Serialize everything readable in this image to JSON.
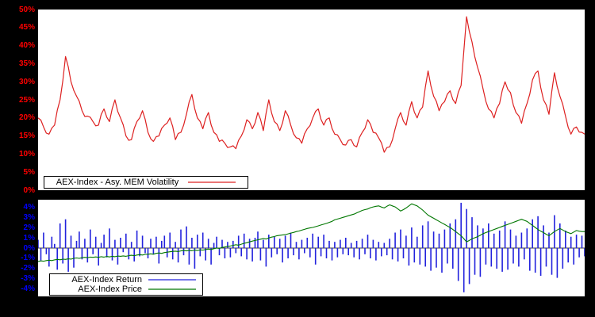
{
  "colors": {
    "background": "#000000",
    "plot_background": "#ffffff",
    "volatility_line": "#dd2020",
    "volatility_axis_text": "#ff0000",
    "return_bars": "#2222dd",
    "return_axis_text": "#0000ff",
    "price_line": "#007700",
    "legend_text": "#000000",
    "zero_axis": "#000000"
  },
  "chart_data": [
    {
      "type": "line",
      "title": "",
      "xlabel": "",
      "ylabel": "",
      "ylim": [
        0,
        50
      ],
      "yticks": [
        "50%",
        "45%",
        "40%",
        "35%",
        "30%",
        "25%",
        "20%",
        "15%",
        "10%",
        "5%",
        "0%"
      ],
      "grid": false,
      "legend_position": "bottom-left-inside",
      "series": [
        {
          "name": "AEX-Index - Asy. MEM Volatility",
          "color": "#dd2020",
          "unit": "%",
          "values": [
            20.0,
            19.4,
            17.5,
            15.8,
            15.5,
            17.2,
            18.0,
            22.1,
            25.0,
            30.3,
            37.0,
            34.1,
            30.0,
            27.6,
            26.0,
            24.6,
            22.0,
            20.4,
            20.5,
            20.2,
            19.0,
            17.8,
            18.0,
            21.0,
            22.5,
            20.2,
            19.0,
            22.6,
            25.0,
            21.8,
            20.0,
            18.1,
            15.0,
            13.8,
            14.0,
            17.1,
            19.0,
            20.0,
            22.0,
            19.6,
            16.0,
            14.2,
            13.5,
            14.8,
            15.0,
            17.1,
            18.0,
            18.6,
            20.0,
            17.6,
            14.0,
            15.7,
            16.0,
            18.0,
            21.0,
            24.4,
            26.5,
            22.6,
            20.0,
            19.0,
            17.0,
            19.8,
            21.5,
            18.1,
            16.0,
            15.3,
            13.5,
            13.9,
            13.0,
            11.8,
            12.0,
            12.3,
            11.5,
            13.8,
            15.0,
            16.7,
            19.5,
            18.8,
            17.0,
            18.6,
            21.5,
            19.6,
            16.5,
            21.3,
            25.0,
            21.4,
            19.0,
            18.3,
            16.5,
            18.6,
            22.0,
            20.6,
            18.0,
            15.6,
            14.5,
            14.3,
            13.0,
            15.6,
            17.0,
            17.9,
            20.0,
            21.8,
            22.5,
            19.6,
            18.0,
            19.6,
            20.0,
            17.1,
            15.5,
            15.3,
            14.0,
            12.6,
            12.5,
            13.8,
            14.0,
            12.4,
            12.0,
            14.6,
            16.0,
            17.1,
            19.5,
            18.3,
            16.0,
            15.8,
            14.5,
            13.1,
            10.5,
            11.8,
            12.0,
            13.9,
            17.0,
            19.8,
            21.5,
            19.1,
            18.0,
            21.8,
            24.5,
            21.6,
            20.0,
            22.1,
            23.0,
            28.6,
            33.0,
            28.9,
            26.0,
            24.6,
            22.0,
            23.8,
            24.5,
            26.6,
            27.5,
            25.1,
            24.0,
            27.1,
            29.0,
            38.6,
            48.0,
            43.9,
            41.0,
            36.9,
            34.0,
            31.6,
            28.0,
            24.6,
            22.5,
            21.8,
            20.0,
            22.6,
            24.0,
            27.6,
            30.0,
            27.9,
            27.0,
            23.6,
            21.5,
            20.6,
            18.5,
            21.8,
            24.0,
            26.6,
            30.5,
            32.3,
            33.0,
            28.4,
            25.0,
            23.6,
            21.0,
            27.3,
            32.5,
            28.6,
            26.0,
            23.8,
            20.5,
            17.4,
            15.5,
            17.1,
            17.5,
            16.1,
            16.0,
            15.5
          ]
        }
      ]
    },
    {
      "type": "mixed",
      "title": "",
      "xlabel": "",
      "ylabel": "",
      "ylim": [
        -4.7,
        4.7
      ],
      "yticks": [
        "4%",
        "3%",
        "2%",
        "1%",
        "0%",
        "-1%",
        "-2%",
        "-3%",
        "-4%"
      ],
      "grid": false,
      "legend_position": "bottom-left-inside",
      "series": [
        {
          "name": "AEX-Index Return",
          "type": "bar",
          "color": "#2222dd",
          "unit": "%",
          "values": [
            0.8,
            -1.2,
            1.5,
            -0.6,
            -1.8,
            1.1,
            0.4,
            -2.1,
            2.4,
            -1.5,
            2.8,
            -2.3,
            1.2,
            -1.9,
            0.7,
            1.6,
            -1.1,
            0.9,
            -1.4,
            1.8,
            -0.6,
            1.1,
            -1.7,
            0.5,
            1.3,
            -0.9,
            1.9,
            -1.2,
            0.8,
            -1.6,
            1.0,
            -0.4,
            1.4,
            -1.1,
            0.6,
            -1.3,
            1.7,
            -0.8,
            1.2,
            -0.5,
            -1.0,
            0.9,
            -0.6,
            1.1,
            -1.5,
            0.7,
            1.2,
            -0.9,
            1.5,
            -1.1,
            0.6,
            -1.4,
            1.8,
            -0.7,
            2.1,
            -1.6,
            1.0,
            -2.0,
            1.3,
            -0.8,
            1.5,
            -1.2,
            0.9,
            -1.6,
            0.5,
            1.1,
            -0.7,
            0.8,
            -1.0,
            0.6,
            -0.9,
            0.7,
            -0.5,
            1.2,
            -0.8,
            1.4,
            -1.1,
            0.9,
            -1.3,
            1.0,
            1.6,
            -1.2,
            0.8,
            -1.8,
            1.3,
            -0.9,
            1.1,
            -0.6,
            0.9,
            -1.4,
            1.2,
            -1.0,
            1.5,
            -0.7,
            0.6,
            -1.1,
            0.8,
            -0.5,
            1.0,
            -0.9,
            1.4,
            -1.6,
            1.1,
            -0.8,
            1.3,
            -1.0,
            0.7,
            -1.2,
            0.6,
            -0.9,
            0.8,
            -0.6,
            1.0,
            -0.7,
            0.5,
            -0.9,
            0.7,
            -1.1,
            0.9,
            -0.6,
            1.3,
            -1.0,
            0.8,
            -1.2,
            0.6,
            -0.8,
            0.5,
            -0.7,
            0.9,
            -1.1,
            1.5,
            -1.3,
            1.8,
            -1.0,
            1.2,
            -1.7,
            2.0,
            -1.4,
            1.1,
            -1.6,
            2.2,
            -1.8,
            2.6,
            -2.2,
            1.6,
            -1.9,
            1.4,
            -2.4,
            1.8,
            -1.5,
            2.4,
            -2.0,
            2.8,
            -3.2,
            4.4,
            -4.3,
            3.8,
            -3.5,
            3.0,
            -2.6,
            2.2,
            -2.8,
            1.9,
            -1.6,
            2.4,
            -1.8,
            1.4,
            -2.0,
            1.7,
            -2.3,
            2.6,
            -2.1,
            1.8,
            -1.5,
            1.2,
            -1.8,
            1.5,
            -1.1,
            1.9,
            -2.2,
            2.8,
            -2.4,
            3.1,
            -2.7,
            2.2,
            -1.8,
            1.5,
            -2.6,
            3.2,
            -2.9,
            2.4,
            -2.0,
            1.7,
            -1.4,
            1.1,
            -1.6,
            1.3,
            -0.9,
            1.2,
            -0.8
          ]
        },
        {
          "name": "AEX-Index Price",
          "type": "line",
          "color": "#007700",
          "unit": "%",
          "values": [
            -1.3,
            -1.25,
            -1.28,
            -1.22,
            -1.18,
            -1.22,
            -1.15,
            -1.1,
            -1.14,
            -1.08,
            -1.1,
            -1.05,
            -1.08,
            -1.0,
            -0.96,
            -1.0,
            -0.94,
            -0.9,
            -0.94,
            -0.88,
            -0.9,
            -0.86,
            -0.9,
            -0.84,
            -0.88,
            -0.82,
            -0.86,
            -0.8,
            -0.84,
            -0.78,
            -0.8,
            -0.76,
            -0.8,
            -0.74,
            -0.7,
            -0.74,
            -0.68,
            -0.64,
            -0.68,
            -0.62,
            -0.6,
            -0.56,
            -0.6,
            -0.52,
            -0.48,
            -0.52,
            -0.44,
            -0.4,
            -0.36,
            -0.32,
            -0.3,
            -0.34,
            -0.28,
            -0.24,
            -0.28,
            -0.22,
            -0.26,
            -0.2,
            -0.24,
            -0.18,
            -0.2,
            -0.14,
            -0.1,
            -0.14,
            -0.06,
            0.0,
            -0.04,
            0.06,
            0.1,
            0.16,
            0.2,
            0.26,
            0.32,
            0.28,
            0.38,
            0.46,
            0.52,
            0.6,
            0.68,
            0.74,
            0.8,
            0.86,
            0.92,
            0.88,
            0.98,
            1.06,
            1.12,
            1.2,
            1.24,
            1.28,
            1.3,
            1.38,
            1.46,
            1.52,
            1.6,
            1.66,
            1.74,
            1.82,
            1.9,
            1.96,
            2.0,
            2.08,
            2.16,
            2.24,
            2.32,
            2.4,
            2.5,
            2.6,
            2.74,
            2.82,
            2.9,
            2.98,
            3.06,
            3.14,
            3.22,
            3.3,
            3.42,
            3.54,
            3.66,
            3.74,
            3.8,
            3.92,
            4.0,
            4.06,
            4.1,
            3.98,
            3.9,
            4.06,
            4.2,
            4.1,
            4.0,
            3.8,
            3.6,
            3.74,
            3.9,
            4.1,
            4.3,
            4.2,
            4.1,
            3.9,
            3.7,
            3.44,
            3.2,
            3.04,
            2.9,
            2.74,
            2.6,
            2.44,
            2.3,
            2.14,
            2.0,
            1.8,
            1.6,
            1.4,
            1.2,
            0.9,
            0.6,
            0.74,
            0.9,
            1.0,
            1.1,
            1.24,
            1.4,
            1.5,
            1.6,
            1.7,
            1.8,
            1.9,
            2.0,
            2.1,
            2.2,
            2.3,
            2.4,
            2.5,
            2.6,
            2.7,
            2.8,
            2.7,
            2.6,
            2.4,
            2.2,
            2.0,
            1.8,
            1.64,
            1.5,
            1.34,
            1.2,
            1.4,
            1.6,
            1.76,
            1.9,
            1.76,
            1.6,
            1.5,
            1.4,
            1.56,
            1.7,
            1.64,
            1.6,
            1.6
          ]
        }
      ]
    }
  ]
}
